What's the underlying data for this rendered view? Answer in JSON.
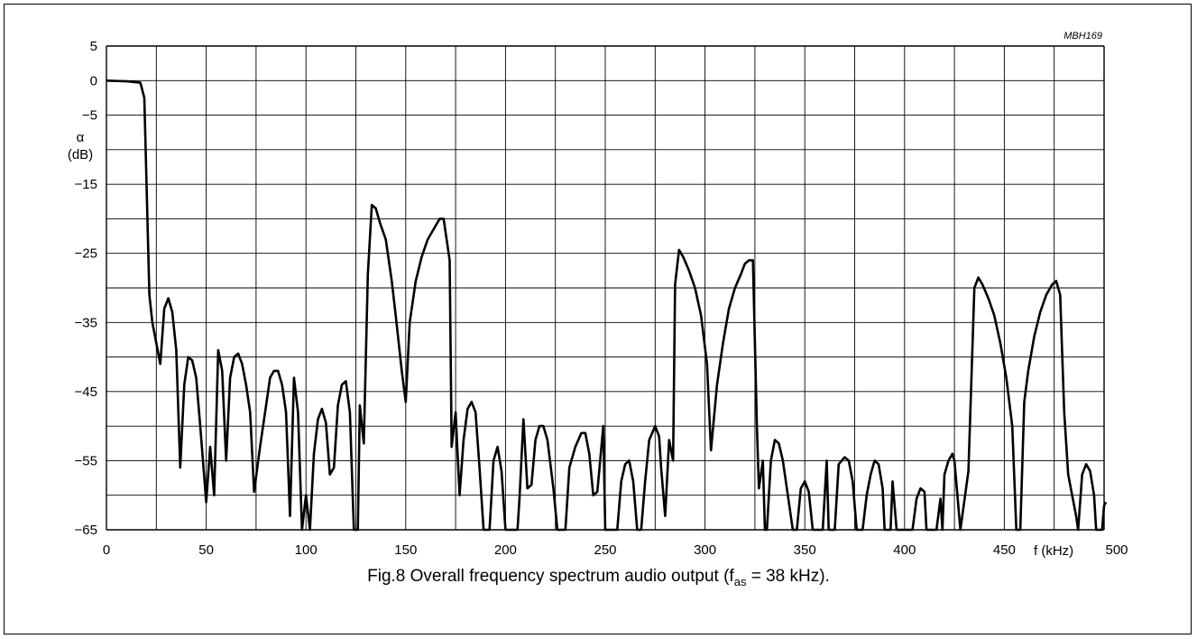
{
  "figure_ref": "MBH169",
  "caption": {
    "prefix": "Fig.8  Overall frequency spectrum audio output (f",
    "subscript": "as",
    "suffix": " = 38 kHz)."
  },
  "colors": {
    "line": "#000000",
    "grid": "#000000",
    "background": "#ffffff"
  },
  "chart_data": {
    "type": "line",
    "xlabel": "f (kHz)",
    "ylabel_symbol": "α",
    "ylabel_unit": "(dB)",
    "xlim": [
      0,
      500
    ],
    "ylim": [
      -65,
      5
    ],
    "grid": true,
    "x_ticks": [
      0,
      50,
      100,
      150,
      200,
      250,
      300,
      350,
      400,
      450,
      500
    ],
    "x_tick_labels": [
      "0",
      "50",
      "100",
      "150",
      "200",
      "250",
      "300",
      "350",
      "400",
      "450",
      "500"
    ],
    "y_ticks": [
      5,
      0,
      -5,
      -15,
      -25,
      -35,
      -45,
      -55,
      -65
    ],
    "y_tick_labels": [
      "5",
      "0",
      "−5",
      "−15",
      "−25",
      "−35",
      "−45",
      "−55",
      "−65"
    ],
    "series": [
      {
        "points": [
          [
            0,
            0
          ],
          [
            10,
            -0.1
          ],
          [
            17,
            -0.3
          ],
          [
            19,
            -2.5
          ],
          [
            21.5,
            -31
          ],
          [
            23,
            -35
          ],
          [
            27,
            -41
          ],
          [
            29,
            -33
          ],
          [
            31,
            -31.5
          ],
          [
            33,
            -33.5
          ],
          [
            35,
            -39
          ],
          [
            37,
            -56
          ],
          [
            39,
            -44
          ],
          [
            41,
            -40
          ],
          [
            43,
            -40.5
          ],
          [
            45,
            -43
          ],
          [
            47,
            -50
          ],
          [
            50,
            -61
          ],
          [
            52,
            -53
          ],
          [
            54,
            -60
          ],
          [
            56,
            -39
          ],
          [
            58,
            -42
          ],
          [
            60,
            -55
          ],
          [
            62,
            -43
          ],
          [
            64,
            -40
          ],
          [
            66,
            -39.5
          ],
          [
            68,
            -41
          ],
          [
            70,
            -44
          ],
          [
            72,
            -48
          ],
          [
            74,
            -59.5
          ],
          [
            77,
            -53
          ],
          [
            80,
            -47
          ],
          [
            82,
            -43
          ],
          [
            84,
            -42
          ],
          [
            86,
            -42
          ],
          [
            88,
            -44
          ],
          [
            90,
            -48
          ],
          [
            92,
            -63
          ],
          [
            94,
            -43
          ],
          [
            96,
            -48
          ],
          [
            98,
            -65
          ],
          [
            100,
            -60
          ],
          [
            102,
            -65
          ],
          [
            104,
            -54
          ],
          [
            106,
            -49
          ],
          [
            108,
            -47.5
          ],
          [
            110,
            -49.5
          ],
          [
            112,
            -57
          ],
          [
            114,
            -56
          ],
          [
            116,
            -47
          ],
          [
            118,
            -44
          ],
          [
            120,
            -43.5
          ],
          [
            122,
            -48
          ],
          [
            124,
            -65
          ],
          [
            126,
            -65
          ],
          [
            127,
            -47
          ],
          [
            129,
            -52.5
          ],
          [
            131,
            -28
          ],
          [
            133,
            -18
          ],
          [
            135,
            -18.5
          ],
          [
            137,
            -20.5
          ],
          [
            140,
            -23
          ],
          [
            143,
            -29
          ],
          [
            145,
            -34
          ],
          [
            148,
            -42
          ],
          [
            150,
            -46.5
          ],
          [
            152,
            -35
          ],
          [
            155,
            -29
          ],
          [
            158,
            -25.5
          ],
          [
            161,
            -23
          ],
          [
            164,
            -21.5
          ],
          [
            167,
            -20
          ],
          [
            169,
            -20
          ],
          [
            172,
            -26
          ],
          [
            173,
            -53
          ],
          [
            175,
            -48
          ],
          [
            177,
            -60
          ],
          [
            179,
            -52
          ],
          [
            181,
            -47.5
          ],
          [
            183,
            -46.5
          ],
          [
            185,
            -48
          ],
          [
            187,
            -56
          ],
          [
            189,
            -65
          ],
          [
            192,
            -65
          ],
          [
            194,
            -55
          ],
          [
            196,
            -53
          ],
          [
            198,
            -56.5
          ],
          [
            200,
            -65
          ],
          [
            206,
            -65
          ],
          [
            207,
            -60.5
          ],
          [
            209,
            -49
          ],
          [
            211,
            -59
          ],
          [
            213,
            -58.5
          ],
          [
            215,
            -52
          ],
          [
            217,
            -50
          ],
          [
            219,
            -50
          ],
          [
            221,
            -52
          ],
          [
            224,
            -59
          ],
          [
            226,
            -65
          ],
          [
            230,
            -65
          ],
          [
            232,
            -56
          ],
          [
            235,
            -53
          ],
          [
            238,
            -51
          ],
          [
            240,
            -51
          ],
          [
            242,
            -54
          ],
          [
            244,
            -60
          ],
          [
            246,
            -59.5
          ],
          [
            249,
            -50
          ],
          [
            250,
            -65
          ],
          [
            256,
            -65
          ],
          [
            258,
            -58
          ],
          [
            260,
            -55.5
          ],
          [
            262,
            -55
          ],
          [
            264,
            -58
          ],
          [
            266,
            -65
          ],
          [
            268,
            -65
          ],
          [
            270,
            -58
          ],
          [
            272,
            -52
          ],
          [
            275,
            -50
          ],
          [
            277,
            -51.5
          ],
          [
            278,
            -56
          ],
          [
            280,
            -63
          ],
          [
            282,
            -52
          ],
          [
            284,
            -55
          ],
          [
            285,
            -29.5
          ],
          [
            287,
            -24.5
          ],
          [
            289,
            -25.5
          ],
          [
            292,
            -27.5
          ],
          [
            295,
            -30
          ],
          [
            298,
            -34
          ],
          [
            301,
            -41
          ],
          [
            303,
            -53.5
          ],
          [
            306,
            -44
          ],
          [
            309,
            -38
          ],
          [
            312,
            -33
          ],
          [
            315,
            -30
          ],
          [
            318,
            -28
          ],
          [
            320,
            -26.5
          ],
          [
            322,
            -26
          ],
          [
            324,
            -26
          ],
          [
            326,
            -50
          ],
          [
            327,
            -59
          ],
          [
            329,
            -55
          ],
          [
            330,
            -65
          ],
          [
            331,
            -65
          ],
          [
            333,
            -55
          ],
          [
            335,
            -52
          ],
          [
            337,
            -52.5
          ],
          [
            339,
            -55
          ],
          [
            341,
            -59
          ],
          [
            344,
            -65
          ],
          [
            346,
            -65
          ],
          [
            348,
            -59
          ],
          [
            350,
            -58
          ],
          [
            352,
            -59.5
          ],
          [
            354,
            -65
          ],
          [
            359,
            -65
          ],
          [
            361,
            -55
          ],
          [
            362,
            -65
          ],
          [
            365,
            -65
          ],
          [
            367,
            -55.5
          ],
          [
            370,
            -54.5
          ],
          [
            372,
            -55
          ],
          [
            374,
            -58
          ],
          [
            376,
            -65
          ],
          [
            379,
            -65
          ],
          [
            381,
            -60
          ],
          [
            383,
            -57
          ],
          [
            385,
            -55
          ],
          [
            387,
            -55.5
          ],
          [
            389,
            -59
          ],
          [
            390,
            -65
          ],
          [
            393,
            -65
          ],
          [
            394,
            -58
          ],
          [
            396,
            -65
          ],
          [
            404,
            -65
          ],
          [
            406,
            -60.5
          ],
          [
            408,
            -59
          ],
          [
            410,
            -59.5
          ],
          [
            411,
            -65
          ],
          [
            416,
            -65
          ],
          [
            418,
            -60.5
          ],
          [
            419,
            -65
          ],
          [
            420,
            -57
          ],
          [
            422,
            -55
          ],
          [
            424,
            -54
          ],
          [
            425,
            -55
          ],
          [
            428,
            -65
          ],
          [
            432,
            -56.5
          ],
          [
            435,
            -30
          ],
          [
            437,
            -28.5
          ],
          [
            439,
            -29.5
          ],
          [
            442,
            -31.5
          ],
          [
            445,
            -34
          ],
          [
            448,
            -38
          ],
          [
            451,
            -43
          ],
          [
            454,
            -50
          ],
          [
            456,
            -65
          ],
          [
            458,
            -65
          ],
          [
            460,
            -46.5
          ],
          [
            462,
            -42
          ],
          [
            465,
            -37
          ],
          [
            468,
            -33.5
          ],
          [
            471,
            -31
          ],
          [
            474,
            -29.5
          ],
          [
            476,
            -29
          ],
          [
            478,
            -31
          ],
          [
            480,
            -48
          ],
          [
            482,
            -57
          ],
          [
            484,
            -60
          ],
          [
            486,
            -63
          ],
          [
            487,
            -65
          ],
          [
            489,
            -57
          ],
          [
            491,
            -55.5
          ],
          [
            493,
            -56.5
          ],
          [
            495,
            -60
          ],
          [
            496,
            -65
          ],
          [
            499,
            -65
          ],
          [
            500,
            -61.5
          ],
          [
            502,
            -61
          ]
        ]
      }
    ]
  }
}
